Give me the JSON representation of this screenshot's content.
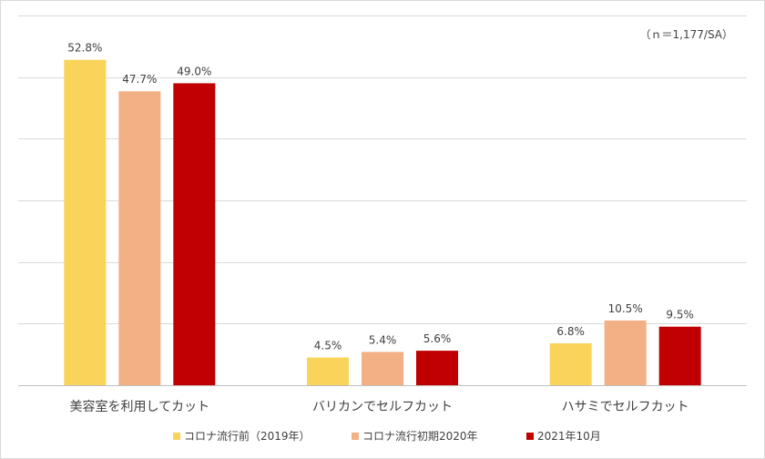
{
  "chart_data": {
    "type": "bar",
    "note": "（ｎ＝1,177/SA）",
    "categories": [
      "美容室を利用してカット",
      "バリカンでセルフカット",
      "ハサミでセルフカット"
    ],
    "series": [
      {
        "name": "コロナ流行前（2019年）",
        "values": [
          52.8,
          4.5,
          6.8
        ],
        "labels": [
          "52.8%",
          "4.5%",
          "6.8%"
        ],
        "color": "#f9d35a"
      },
      {
        "name": "コロナ流行初期2020年",
        "values": [
          47.7,
          5.4,
          10.5
        ],
        "labels": [
          "47.7%",
          "5.4%",
          "10.5%"
        ],
        "color": "#f2b084"
      },
      {
        "name": "2021年10月",
        "values": [
          49.0,
          5.6,
          9.5
        ],
        "labels": [
          "49.0%",
          "5.6%",
          "9.5%"
        ],
        "color": "#c00000"
      }
    ],
    "ylim": [
      0,
      60
    ],
    "grid": true,
    "legend": "bottom"
  }
}
